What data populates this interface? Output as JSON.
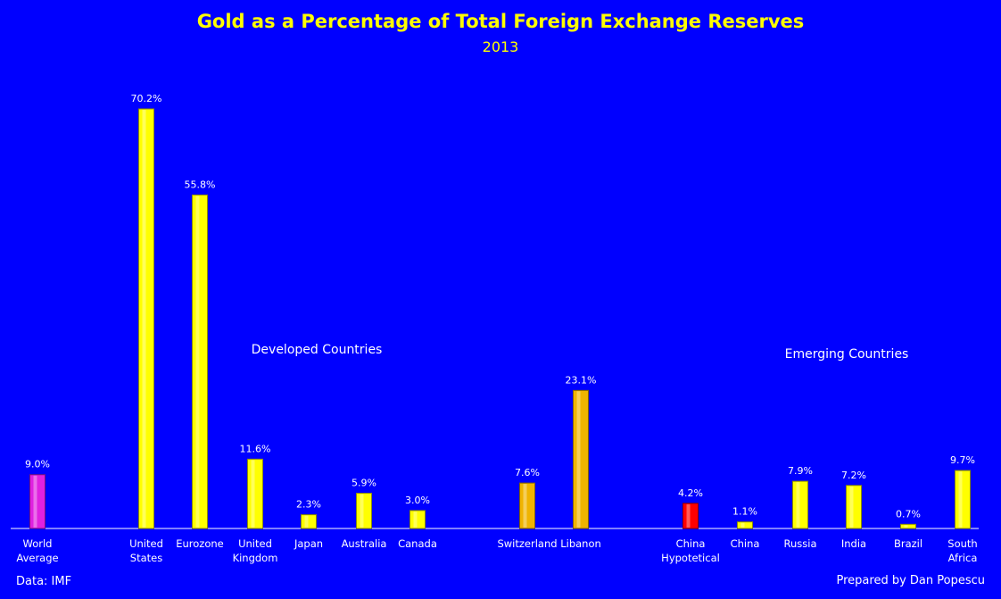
{
  "chart_data": {
    "type": "bar",
    "title": "Gold as a Percentage of Total Foreign Exchange Reserves",
    "subtitle": "2013",
    "ylim": [
      0,
      75
    ],
    "grid": false,
    "legend": "none",
    "categories": [
      "World Average",
      "United States",
      "Eurozone",
      "United Kingdom",
      "Japan",
      "Australia",
      "Canada",
      "Switzerland",
      "Libanon",
      "China Hypotetical",
      "China",
      "Russia",
      "India",
      "Brazil",
      "South Africa"
    ],
    "values": [
      9.0,
      70.2,
      55.8,
      11.6,
      2.3,
      5.9,
      3.0,
      7.6,
      23.1,
      4.2,
      1.1,
      7.9,
      7.2,
      0.7,
      9.7
    ],
    "value_labels": [
      "9.0%",
      "70.2%",
      "55.8%",
      "11.6%",
      "2.3%",
      "5.9%",
      "3.0%",
      "7.6%",
      "23.1%",
      "4.2%",
      "1.1%",
      "7.9%",
      "7.2%",
      "0.7%",
      "9.7%"
    ],
    "bar_colors": [
      "#E020E0",
      "#FFFF00",
      "#FFFF00",
      "#FFFF00",
      "#FFFF00",
      "#FFFF00",
      "#FFFF00",
      "#F0B400",
      "#F0B400",
      "#FF0000",
      "#FFFF00",
      "#FFFF00",
      "#FFFF00",
      "#FFFF00",
      "#FFFF00"
    ],
    "annotations": {
      "developed": "Developed Countries",
      "emerging": "Emerging Countries"
    }
  },
  "footer": {
    "source": "Data: IMF",
    "credit": "Prepared by Dan Popescu"
  },
  "colors": {
    "background": "#0000FF",
    "title": "#FFFF00",
    "text": "#FFFFFF"
  }
}
